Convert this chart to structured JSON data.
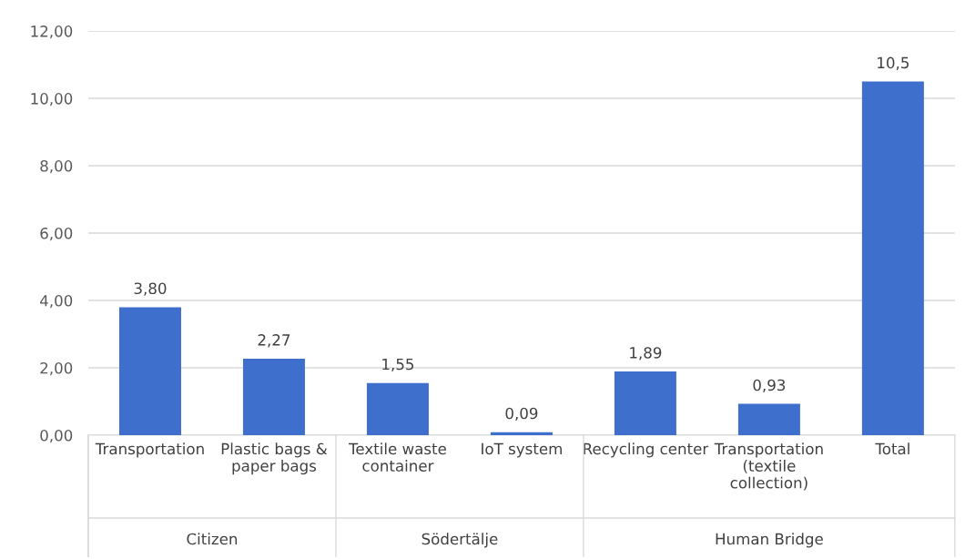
{
  "chart_data": {
    "type": "bar",
    "categories": [
      "Transportation",
      "Plastic bags &\npaper bags",
      "Textile waste\ncontainer",
      "IoT system",
      "Recycling center",
      "Transportation\n(textile\ncollection)",
      "Total"
    ],
    "values": [
      3.8,
      2.27,
      1.55,
      0.09,
      1.89,
      0.93,
      10.5
    ],
    "value_labels": [
      "3,80",
      "2,27",
      "1,55",
      "0,09",
      "1,89",
      "0,93",
      "10,5"
    ],
    "color": "#3f6fcd",
    "ylim": [
      0,
      12
    ],
    "yticks": [
      {
        "value": 0,
        "label": "0,00"
      },
      {
        "value": 2,
        "label": "2,00"
      },
      {
        "value": 4,
        "label": "4,00"
      },
      {
        "value": 6,
        "label": "6,00"
      },
      {
        "value": 8,
        "label": "8,00"
      },
      {
        "value": 10,
        "label": "10,00"
      },
      {
        "value": 12,
        "label": "12,00"
      }
    ],
    "grid": "y",
    "annotations": [
      "Citizen",
      "Södertälje",
      "Human Bridge"
    ]
  }
}
